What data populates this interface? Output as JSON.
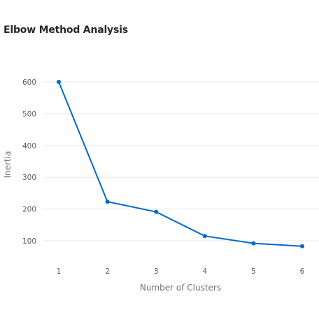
{
  "chart_data": {
    "type": "line",
    "title": "Elbow Method Analysis",
    "xlabel": "Number of Clusters",
    "ylabel": "Inertia",
    "x": [
      1,
      2,
      3,
      4,
      5,
      6
    ],
    "xticks": [
      "1",
      "2",
      "3",
      "4",
      "5",
      "6"
    ],
    "yticks": [
      100,
      200,
      300,
      400,
      500,
      600
    ],
    "series": [
      {
        "values": [
          600,
          223,
          191,
          115,
          92,
          83
        ]
      }
    ],
    "grid": true,
    "color": "#0068c9"
  }
}
